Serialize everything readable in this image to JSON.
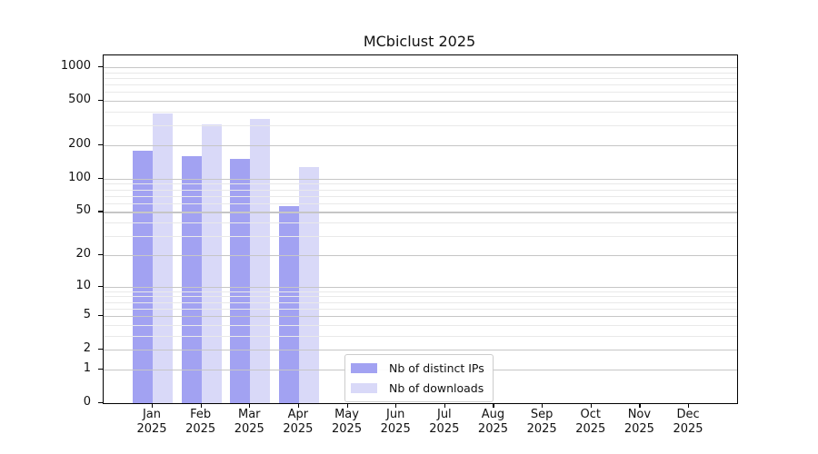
{
  "chart_data": {
    "type": "bar",
    "title": "MCbiclust 2025",
    "x": {
      "categories": [
        "Jan",
        "Feb",
        "Mar",
        "Apr",
        "May",
        "Jun",
        "Jul",
        "Aug",
        "Sep",
        "Oct",
        "Nov",
        "Dec"
      ],
      "year_label": "2025"
    },
    "y_axis": {
      "scale": "log1p",
      "major_ticks": [
        0,
        1,
        2,
        5,
        10,
        20,
        50,
        100,
        200,
        500,
        1000
      ],
      "minor_ticks": [
        3,
        4,
        6,
        7,
        8,
        9,
        30,
        40,
        60,
        70,
        80,
        90,
        300,
        400,
        600,
        700,
        800,
        900
      ],
      "ylim": [
        0,
        1270
      ]
    },
    "series": [
      {
        "name": "Nb of distinct IPs",
        "color": "#a2a2f2",
        "values": [
          178,
          160,
          152,
          56,
          0,
          0,
          0,
          0,
          0,
          0,
          0,
          0
        ]
      },
      {
        "name": "Nb of downloads",
        "color": "#d9d9f8",
        "values": [
          388,
          305,
          344,
          127,
          0,
          0,
          0,
          0,
          0,
          0,
          0,
          0
        ]
      }
    ],
    "legend_position": "lower center",
    "grid": true
  },
  "colors": {
    "axis": "#000000",
    "grid_major": "#c6c6c6",
    "grid_minor": "#e9e9e9",
    "text": "#111111",
    "legend_border": "#cccccc"
  }
}
